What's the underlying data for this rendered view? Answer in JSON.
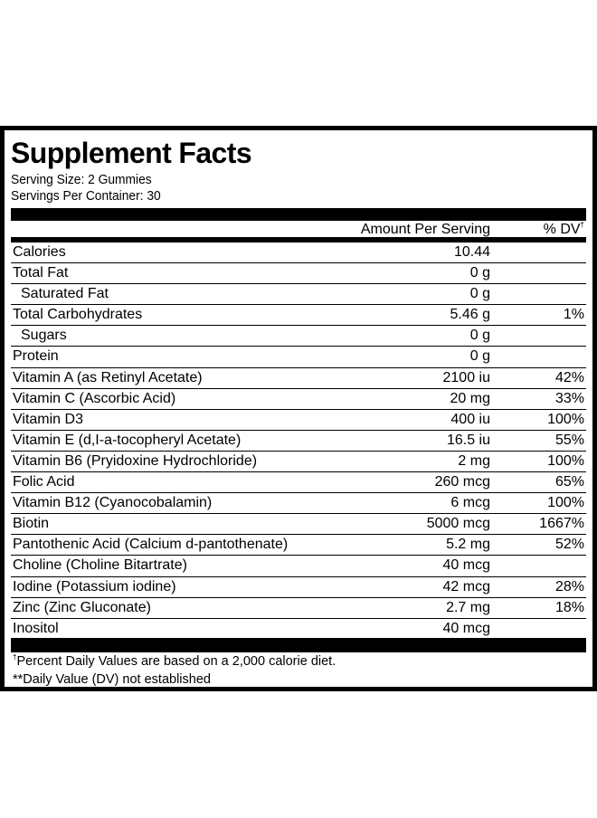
{
  "label": {
    "title": "Supplement Facts",
    "serving_size": "Serving Size: 2 Gummies",
    "servings_per_container": "Servings Per Container: 30",
    "amount_header": "Amount Per Serving",
    "dv_header": "% DV",
    "dv_header_mark": "†",
    "rows": [
      {
        "name": "Calories",
        "amount": "10.44",
        "dv": "",
        "indent": false
      },
      {
        "name": "Total Fat",
        "amount": "0 g",
        "dv": "",
        "indent": false
      },
      {
        "name": "Saturated Fat",
        "amount": "0 g",
        "dv": "",
        "indent": true
      },
      {
        "name": "Total Carbohydrates",
        "amount": "5.46 g",
        "dv": "1%",
        "indent": false
      },
      {
        "name": "Sugars",
        "amount": "0 g",
        "dv": "",
        "indent": true
      },
      {
        "name": "Protein",
        "amount": "0 g",
        "dv": "",
        "indent": false
      },
      {
        "name": "Vitamin A (as Retinyl Acetate)",
        "amount": "2100 iu",
        "dv": "42%",
        "indent": false
      },
      {
        "name": "Vitamin C (Ascorbic Acid)",
        "amount": "20 mg",
        "dv": "33%",
        "indent": false
      },
      {
        "name": "Vitamin D3",
        "amount": "400 iu",
        "dv": "100%",
        "indent": false
      },
      {
        "name": "Vitamin E (d,I-a-tocopheryl Acetate)",
        "amount": "16.5 iu",
        "dv": "55%",
        "indent": false
      },
      {
        "name": "Vitamin B6 (Pryidoxine Hydrochloride)",
        "amount": "2 mg",
        "dv": "100%",
        "indent": false
      },
      {
        "name": "Folic Acid",
        "amount": "260 mcg",
        "dv": "65%",
        "indent": false
      },
      {
        "name": "Vitamin B12 (Cyanocobalamin)",
        "amount": "6 mcg",
        "dv": "100%",
        "indent": false
      },
      {
        "name": "Biotin",
        "amount": "5000 mcg",
        "dv": "1667%",
        "indent": false
      },
      {
        "name": "Pantothenic Acid (Calcium d-pantothenate)",
        "amount": "5.2 mg",
        "dv": "52%",
        "indent": false
      },
      {
        "name": "Choline (Choline Bitartrate)",
        "amount": "40 mcg",
        "dv": "",
        "indent": false
      },
      {
        "name": "Iodine (Potassium iodine)",
        "amount": "42 mcg",
        "dv": "28%",
        "indent": false
      },
      {
        "name": "Zinc (Zinc Gluconate)",
        "amount": "2.7 mg",
        "dv": "18%",
        "indent": false
      },
      {
        "name": "Inositol",
        "amount": "40 mcg",
        "dv": "",
        "indent": false
      }
    ],
    "footnote_mark": "†",
    "footnote_1": "Percent Daily Values are based on a 2,000 calorie diet.",
    "footnote_2": "**Daily Value (DV) not established"
  }
}
